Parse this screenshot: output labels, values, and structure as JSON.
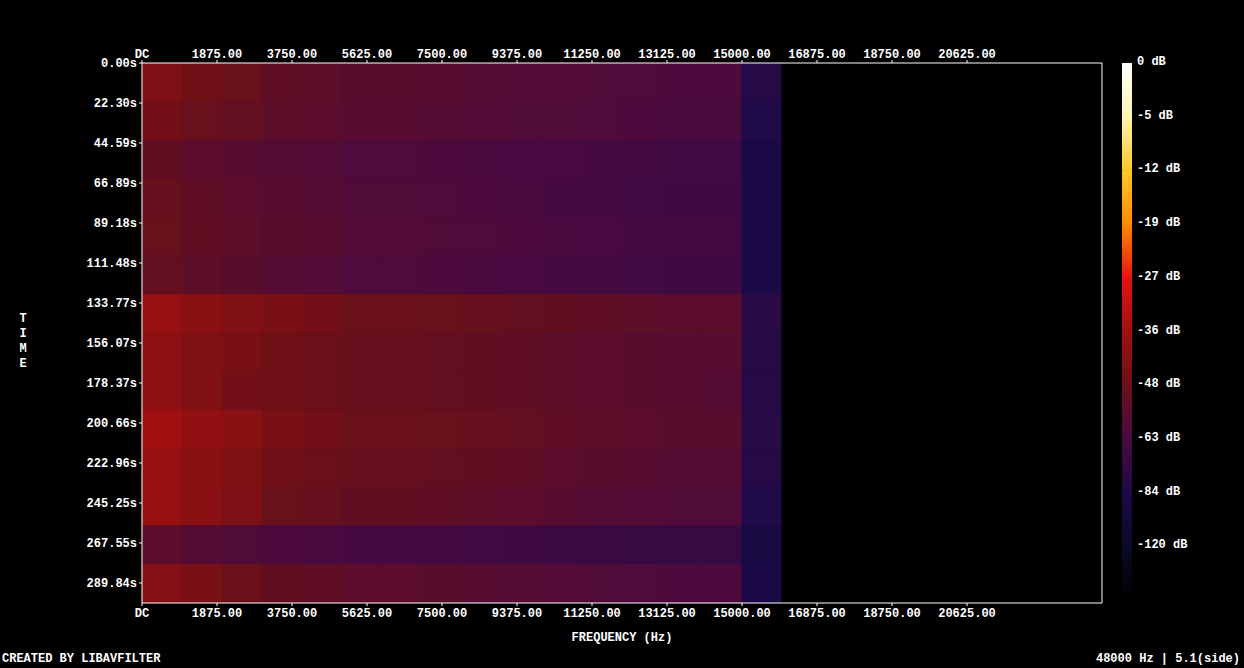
{
  "chart_data": {
    "type": "heatmap",
    "xlabel": "FREQUENCY (Hz)",
    "ylabel": "TIME",
    "annotations": [
      "CREATED BY LIBAVFILTER",
      "48000 Hz | 5.1(side)"
    ],
    "xlim": [
      0,
      24000
    ],
    "xticks": [
      {
        "value": 0,
        "label": "DC"
      },
      {
        "value": 1875,
        "label": "1875.00"
      },
      {
        "value": 3750,
        "label": "3750.00"
      },
      {
        "value": 5625,
        "label": "5625.00"
      },
      {
        "value": 7500,
        "label": "7500.00"
      },
      {
        "value": 9375,
        "label": "9375.00"
      },
      {
        "value": 11250,
        "label": "11250.00"
      },
      {
        "value": 13125,
        "label": "13125.00"
      },
      {
        "value": 15000,
        "label": "15000.00"
      },
      {
        "value": 16875,
        "label": "16875.00"
      },
      {
        "value": 18750,
        "label": "18750.00"
      },
      {
        "value": 20625,
        "label": "20625.00"
      }
    ],
    "ylim": [
      0,
      301
    ],
    "yticks": [
      {
        "value": 0,
        "label": "0.00s"
      },
      {
        "value": 22.3,
        "label": "22.30s"
      },
      {
        "value": 44.59,
        "label": "44.59s"
      },
      {
        "value": 66.89,
        "label": "66.89s"
      },
      {
        "value": 89.18,
        "label": "89.18s"
      },
      {
        "value": 111.48,
        "label": "111.48s"
      },
      {
        "value": 133.77,
        "label": "133.77s"
      },
      {
        "value": 156.07,
        "label": "156.07s"
      },
      {
        "value": 178.37,
        "label": "178.37s"
      },
      {
        "value": 200.66,
        "label": "200.66s"
      },
      {
        "value": 222.96,
        "label": "222.96s"
      },
      {
        "value": 245.25,
        "label": "245.25s"
      },
      {
        "value": 267.55,
        "label": "267.55s"
      },
      {
        "value": 289.84,
        "label": "289.84s"
      }
    ],
    "freq_bins": [
      0,
      1000,
      2000,
      3000,
      4000,
      5000,
      6000,
      7000,
      8000,
      9000,
      10000,
      11000,
      12000,
      13000,
      14000,
      15000,
      16000,
      17000,
      18000,
      19000,
      20000,
      21000,
      22000,
      23000,
      24000
    ],
    "time_bins": [
      0,
      21.5,
      43,
      64.5,
      86,
      107.5,
      129,
      150.5,
      172,
      193.5,
      215,
      236.5,
      258,
      279.5,
      301
    ],
    "cells": [
      [
        -44,
        -47,
        -49,
        -53,
        -54,
        -56,
        -56,
        -57,
        -58,
        -59,
        -59,
        -60,
        -61,
        -62,
        -62,
        -80,
        -170,
        -170,
        -170,
        -170,
        -170,
        -170,
        -170,
        -170
      ],
      [
        -46,
        -49,
        -51,
        -54,
        -55,
        -57,
        -57,
        -58,
        -59,
        -60,
        -60,
        -61,
        -62,
        -63,
        -63,
        -82,
        -170,
        -170,
        -170,
        -170,
        -170,
        -170,
        -170,
        -170
      ],
      [
        -52,
        -55,
        -57,
        -58,
        -59,
        -61,
        -61,
        -62,
        -63,
        -64,
        -64,
        -65,
        -66,
        -67,
        -67,
        -86,
        -170,
        -170,
        -170,
        -170,
        -170,
        -170,
        -170,
        -170
      ],
      [
        -50,
        -53,
        -55,
        -57,
        -58,
        -60,
        -60,
        -61,
        -62,
        -63,
        -65,
        -66,
        -67,
        -68,
        -68,
        -86,
        -170,
        -170,
        -170,
        -170,
        -170,
        -170,
        -170,
        -170
      ],
      [
        -49,
        -52,
        -54,
        -56,
        -57,
        -59,
        -59,
        -60,
        -61,
        -62,
        -63,
        -64,
        -65,
        -66,
        -66,
        -85,
        -170,
        -170,
        -170,
        -170,
        -170,
        -170,
        -170,
        -170
      ],
      [
        -51,
        -54,
        -56,
        -58,
        -59,
        -61,
        -61,
        -62,
        -63,
        -64,
        -65,
        -66,
        -67,
        -68,
        -68,
        -87,
        -170,
        -170,
        -170,
        -170,
        -170,
        -170,
        -170,
        -170
      ],
      [
        -38,
        -41,
        -43,
        -45,
        -46,
        -48,
        -48,
        -49,
        -50,
        -51,
        -52,
        -53,
        -54,
        -55,
        -55,
        -78,
        -170,
        -170,
        -170,
        -170,
        -170,
        -170,
        -170,
        -170
      ],
      [
        -40,
        -43,
        -45,
        -47,
        -48,
        -50,
        -50,
        -51,
        -52,
        -53,
        -54,
        -55,
        -56,
        -57,
        -57,
        -80,
        -170,
        -170,
        -170,
        -170,
        -170,
        -170,
        -170,
        -170
      ],
      [
        -40,
        -43,
        -46,
        -47,
        -48,
        -50,
        -50,
        -51,
        -52,
        -53,
        -54,
        -55,
        -56,
        -57,
        -58,
        -80,
        -170,
        -170,
        -170,
        -170,
        -170,
        -170,
        -170,
        -170
      ],
      [
        -36,
        -39,
        -41,
        -45,
        -46,
        -48,
        -48,
        -49,
        -50,
        -51,
        -53,
        -54,
        -55,
        -56,
        -56,
        -79,
        -170,
        -170,
        -170,
        -170,
        -170,
        -170,
        -170,
        -170
      ],
      [
        -38,
        -41,
        -43,
        -47,
        -48,
        -50,
        -50,
        -51,
        -52,
        -53,
        -55,
        -56,
        -57,
        -58,
        -58,
        -80,
        -170,
        -170,
        -170,
        -170,
        -170,
        -170,
        -170,
        -170
      ],
      [
        -38,
        -41,
        -44,
        -49,
        -50,
        -52,
        -52,
        -53,
        -54,
        -55,
        -57,
        -58,
        -59,
        -60,
        -60,
        -82,
        -170,
        -170,
        -170,
        -170,
        -170,
        -170,
        -170,
        -170
      ],
      [
        -55,
        -58,
        -60,
        -62,
        -63,
        -65,
        -65,
        -66,
        -67,
        -68,
        -69,
        -70,
        -71,
        -72,
        -72,
        -90,
        -170,
        -170,
        -170,
        -170,
        -170,
        -170,
        -170,
        -170
      ],
      [
        -42,
        -45,
        -48,
        -52,
        -53,
        -55,
        -55,
        -56,
        -57,
        -58,
        -59,
        -60,
        -61,
        -62,
        -62,
        -84,
        -170,
        -170,
        -170,
        -170,
        -170,
        -170,
        -170,
        -170
      ]
    ],
    "colorbar_range": [
      -170,
      0
    ],
    "colorbar_ticks": [
      {
        "value": 0,
        "label": "0 dB"
      },
      {
        "value": -5,
        "label": "-5 dB"
      },
      {
        "value": -12,
        "label": "-12 dB"
      },
      {
        "value": -19,
        "label": "-19 dB"
      },
      {
        "value": -27,
        "label": "-27 dB"
      },
      {
        "value": -36,
        "label": "-36 dB"
      },
      {
        "value": -48,
        "label": "-48 dB"
      },
      {
        "value": -63,
        "label": "-63 dB"
      },
      {
        "value": -84,
        "label": "-84 dB"
      },
      {
        "value": -120,
        "label": "-120 dB"
      }
    ]
  }
}
